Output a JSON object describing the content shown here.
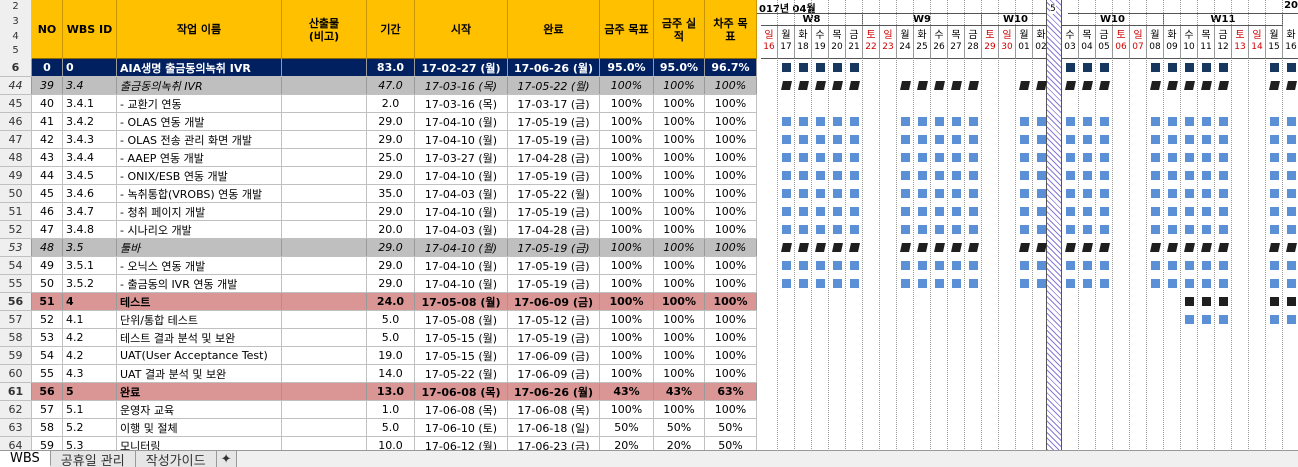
{
  "header": {
    "row_numbers": [
      "2",
      "3",
      "4",
      "5"
    ],
    "no": "NO",
    "wbs": "WBS ID",
    "name": "작업 이름",
    "out": "산출물\n(비고)",
    "dur": "기간",
    "start": "시작",
    "end": "완료",
    "goal": "금주 목표",
    "actual": "금주 실\n적",
    "next": "차주 목\n표"
  },
  "gantt": {
    "month_label": "017년 04월",
    "month_label_right": "20",
    "sep_label": "5",
    "weeks_left": [
      {
        "label": "W8"
      },
      {
        "label": "W9"
      },
      {
        "label": "W10"
      }
    ],
    "weeks_right": [
      {
        "label": "W10"
      },
      {
        "label": "W11"
      }
    ],
    "days_left": [
      "일",
      "월",
      "화",
      "수",
      "목",
      "금",
      "토",
      "일",
      "월",
      "화",
      "수",
      "목",
      "금",
      "토",
      "일",
      "월",
      "화"
    ],
    "nums_left": [
      "16",
      "17",
      "18",
      "19",
      "20",
      "21",
      "22",
      "23",
      "24",
      "25",
      "26",
      "27",
      "28",
      "29",
      "30",
      "01",
      "02"
    ],
    "days_right": [
      "수",
      "목",
      "금",
      "토",
      "일",
      "월",
      "화",
      "수",
      "목",
      "금",
      "토",
      "일",
      "월",
      "화"
    ],
    "nums_right": [
      "03",
      "04",
      "05",
      "06",
      "07",
      "08",
      "09",
      "10",
      "11",
      "12",
      "13",
      "14",
      "15",
      "16"
    ]
  },
  "rows": [
    {
      "rn": "6",
      "no": "0",
      "wbs": "0",
      "name": "AIA생명  출금동의녹취 IVR",
      "out": "",
      "dur": "83.0",
      "start": "17-02-27 (월)",
      "end": "17-06-26 (월)",
      "goal": "95.0%",
      "actual": "95.0%",
      "next": "96.7%",
      "type": "total",
      "marks": "d"
    },
    {
      "rn": "44",
      "no": "39",
      "wbs": "3.4",
      "name": "출금동의녹취 IVR",
      "out": "",
      "dur": "47.0",
      "start": "17-03-16 (목)",
      "end": "17-05-22 (월)",
      "goal": "100%",
      "actual": "100%",
      "next": "100%",
      "type": "sub",
      "marks": "i"
    },
    {
      "rn": "45",
      "no": "40",
      "wbs": "3.4.1",
      "name": "  - 교환기 연동",
      "out": "",
      "dur": "2.0",
      "start": "17-03-16 (목)",
      "end": "17-03-17 (금)",
      "goal": "100%",
      "actual": "100%",
      "next": "100%",
      "type": "task",
      "marks": ""
    },
    {
      "rn": "46",
      "no": "41",
      "wbs": "3.4.2",
      "name": "  - OLAS 연동 개발",
      "out": "",
      "dur": "29.0",
      "start": "17-04-10 (월)",
      "end": "17-05-19 (금)",
      "goal": "100%",
      "actual": "100%",
      "next": "100%",
      "type": "task",
      "marks": "b"
    },
    {
      "rn": "47",
      "no": "42",
      "wbs": "3.4.3",
      "name": "  - OLAS 전송 관리 화면 개발",
      "out": "",
      "dur": "29.0",
      "start": "17-04-10 (월)",
      "end": "17-05-19 (금)",
      "goal": "100%",
      "actual": "100%",
      "next": "100%",
      "type": "task",
      "marks": "b"
    },
    {
      "rn": "48",
      "no": "43",
      "wbs": "3.4.4",
      "name": "  - AAEP 연동 개발",
      "out": "",
      "dur": "25.0",
      "start": "17-03-27 (월)",
      "end": "17-04-28 (금)",
      "goal": "100%",
      "actual": "100%",
      "next": "100%",
      "type": "task",
      "marks": "b"
    },
    {
      "rn": "49",
      "no": "44",
      "wbs": "3.4.5",
      "name": "  - ONIX/ESB 연동 개발",
      "out": "",
      "dur": "29.0",
      "start": "17-04-10 (월)",
      "end": "17-05-19 (금)",
      "goal": "100%",
      "actual": "100%",
      "next": "100%",
      "type": "task",
      "marks": "b"
    },
    {
      "rn": "50",
      "no": "45",
      "wbs": "3.4.6",
      "name": "  - 녹취통합(VROBS) 연동 개발",
      "out": "",
      "dur": "35.0",
      "start": "17-04-03 (월)",
      "end": "17-05-22 (월)",
      "goal": "100%",
      "actual": "100%",
      "next": "100%",
      "type": "task",
      "marks": "b"
    },
    {
      "rn": "51",
      "no": "46",
      "wbs": "3.4.7",
      "name": "  - 청취 페이지 개발",
      "out": "",
      "dur": "29.0",
      "start": "17-04-10 (월)",
      "end": "17-05-19 (금)",
      "goal": "100%",
      "actual": "100%",
      "next": "100%",
      "type": "task",
      "marks": "b"
    },
    {
      "rn": "52",
      "no": "47",
      "wbs": "3.4.8",
      "name": "  - 시나리오 개발",
      "out": "",
      "dur": "20.0",
      "start": "17-04-03 (월)",
      "end": "17-04-28 (금)",
      "goal": "100%",
      "actual": "100%",
      "next": "100%",
      "type": "task",
      "marks": "b"
    },
    {
      "rn": "53",
      "no": "48",
      "wbs": "3.5",
      "name": "툴바",
      "out": "",
      "dur": "29.0",
      "start": "17-04-10 (월)",
      "end": "17-05-19 (금)",
      "goal": "100%",
      "actual": "100%",
      "next": "100%",
      "type": "sub",
      "marks": "i"
    },
    {
      "rn": "54",
      "no": "49",
      "wbs": "3.5.1",
      "name": "  - 오닉스 연동 개발",
      "out": "",
      "dur": "29.0",
      "start": "17-04-10 (월)",
      "end": "17-05-19 (금)",
      "goal": "100%",
      "actual": "100%",
      "next": "100%",
      "type": "task",
      "marks": "b"
    },
    {
      "rn": "55",
      "no": "50",
      "wbs": "3.5.2",
      "name": "  - 출금동의 IVR 연동 개발",
      "out": "",
      "dur": "29.0",
      "start": "17-04-10 (월)",
      "end": "17-05-19 (금)",
      "goal": "100%",
      "actual": "100%",
      "next": "100%",
      "type": "task",
      "marks": "b"
    },
    {
      "rn": "56",
      "no": "51",
      "wbs": "4",
      "name": "테스트",
      "out": "",
      "dur": "24.0",
      "start": "17-05-08 (월)",
      "end": "17-06-09 (금)",
      "goal": "100%",
      "actual": "100%",
      "next": "100%",
      "type": "group",
      "marks": "s"
    },
    {
      "rn": "57",
      "no": "52",
      "wbs": "4.1",
      "name": "단위/통합 테스트",
      "out": "",
      "dur": "5.0",
      "start": "17-05-08 (월)",
      "end": "17-05-12 (금)",
      "goal": "100%",
      "actual": "100%",
      "next": "100%",
      "type": "task",
      "marks": "b2"
    },
    {
      "rn": "58",
      "no": "53",
      "wbs": "4.2",
      "name": "테스트 결과 분석 및 보완",
      "out": "",
      "dur": "5.0",
      "start": "17-05-15 (월)",
      "end": "17-05-19 (금)",
      "goal": "100%",
      "actual": "100%",
      "next": "100%",
      "type": "task",
      "marks": "b3"
    },
    {
      "rn": "59",
      "no": "54",
      "wbs": "4.2",
      "name": "UAT(User Acceptance Test)",
      "out": "",
      "dur": "19.0",
      "start": "17-05-15 (월)",
      "end": "17-06-09 (금)",
      "goal": "100%",
      "actual": "100%",
      "next": "100%",
      "type": "task",
      "marks": "b3"
    },
    {
      "rn": "60",
      "no": "55",
      "wbs": "4.3",
      "name": "UAT 결과 분석 및 보완",
      "out": "",
      "dur": "14.0",
      "start": "17-05-22 (월)",
      "end": "17-06-09 (금)",
      "goal": "100%",
      "actual": "100%",
      "next": "100%",
      "type": "task",
      "marks": ""
    },
    {
      "rn": "61",
      "no": "56",
      "wbs": "5",
      "name": "완료",
      "out": "",
      "dur": "13.0",
      "start": "17-06-08 (목)",
      "end": "17-06-26 (월)",
      "goal": "43%",
      "actual": "43%",
      "next": "63%",
      "type": "group",
      "marks": ""
    },
    {
      "rn": "62",
      "no": "57",
      "wbs": "5.1",
      "name": "운영자 교육",
      "out": "",
      "dur": "1.0",
      "start": "17-06-08 (목)",
      "end": "17-06-08 (목)",
      "goal": "100%",
      "actual": "100%",
      "next": "100%",
      "type": "task",
      "marks": ""
    },
    {
      "rn": "63",
      "no": "58",
      "wbs": "5.2",
      "name": "이행 및 절체",
      "out": "",
      "dur": "5.0",
      "start": "17-06-10 (토)",
      "end": "17-06-18 (일)",
      "goal": "50%",
      "actual": "50%",
      "next": "50%",
      "type": "task",
      "marks": ""
    },
    {
      "rn": "64",
      "no": "59",
      "wbs": "5.3",
      "name": "모니터링",
      "out": "",
      "dur": "10.0",
      "start": "17-06-12 (월)",
      "end": "17-06-23 (금)",
      "goal": "20%",
      "actual": "20%",
      "next": "50%",
      "type": "task",
      "marks": ""
    }
  ],
  "tabs": [
    "WBS",
    "공휴일 관리",
    "작성가이드"
  ]
}
